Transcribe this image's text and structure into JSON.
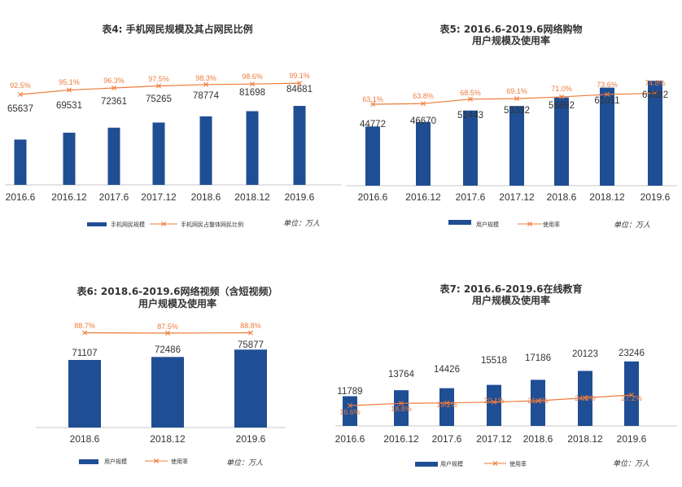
{
  "colors": {
    "bar": "#1f4e94",
    "line": "#ee7b3b",
    "axis": "#c8c8c8"
  },
  "chart_data": [
    {
      "type": "bar",
      "title": "表4: 手机网民规模及其占网民比例",
      "categories": [
        "2016.6",
        "2016.12",
        "2017.6",
        "2017.12",
        "2018.6",
        "2018.12",
        "2019.6"
      ],
      "series": [
        {
          "name": "手机网民规模",
          "type": "bar",
          "values": [
            65637,
            69531,
            72361,
            75265,
            78774,
            81698,
            84681
          ],
          "labels": [
            "65637",
            "69531",
            "72361",
            "75265",
            "78774",
            "81698",
            "84681"
          ]
        },
        {
          "name": "手机网民占整体网民比例",
          "type": "line",
          "values": [
            92.5,
            95.1,
            96.3,
            97.5,
            98.3,
            98.6,
            99.1
          ],
          "labels": [
            "92.5%",
            "95.1%",
            "96.3%",
            "97.5%",
            "98.3%",
            "98.6%",
            "99.1%"
          ]
        }
      ],
      "unit": "单位：万人"
    },
    {
      "type": "bar",
      "title": "表5: 2016.6-2019.6网络购物",
      "subtitle": "用户规模及使用率",
      "categories": [
        "2016.6",
        "2016.12",
        "2017.6",
        "2017.12",
        "2018.6",
        "2018.12",
        "2019.6"
      ],
      "series": [
        {
          "name": "用户规模",
          "type": "bar",
          "values": [
            44772,
            46670,
            51443,
            53332,
            56892,
            61011,
            63882
          ],
          "labels": [
            "44772",
            "46670",
            "51443",
            "53332",
            "56892",
            "61011",
            "63882"
          ]
        },
        {
          "name": "使用率",
          "type": "line",
          "values": [
            63.1,
            63.8,
            68.5,
            69.1,
            71.0,
            73.6,
            74.8
          ],
          "labels": [
            "63.1%",
            "63.8%",
            "68.5%",
            "69.1%",
            "71.0%",
            "73.6%",
            "74.8%"
          ]
        }
      ],
      "unit": "单位：万人"
    },
    {
      "type": "bar",
      "title": "表6: 2018.6-2019.6网络视频（含短视频）",
      "subtitle": "用户规模及使用率",
      "categories": [
        "2018.6",
        "2018.12",
        "2019.6"
      ],
      "series": [
        {
          "name": "用户规模",
          "type": "bar",
          "values": [
            71107,
            72486,
            75877
          ],
          "labels": [
            "71107",
            "72486",
            "75877"
          ]
        },
        {
          "name": "使用率",
          "type": "line",
          "values": [
            88.7,
            87.5,
            88.8
          ],
          "labels": [
            "88.7%",
            "87.5%",
            "88.8%"
          ]
        }
      ],
      "unit": "单位：万人"
    },
    {
      "type": "bar",
      "title": "表7: 2016.6-2019.6在线教育",
      "subtitle": "用户规模及使用率",
      "categories": [
        "2016.6",
        "2016.12",
        "2017.6",
        "2017.12",
        "2018.6",
        "2018.12",
        "2019.6"
      ],
      "series": [
        {
          "name": "用户规模",
          "type": "bar",
          "values": [
            11789,
            13764,
            14426,
            15518,
            17186,
            20123,
            23246
          ],
          "labels": [
            "11789",
            "13764",
            "14426",
            "15518",
            "17186",
            "20123",
            "23246"
          ]
        },
        {
          "name": "使用率",
          "type": "line",
          "values": [
            16.6,
            18.8,
            19.2,
            20.1,
            21.4,
            24.3,
            27.2
          ],
          "labels": [
            "16.6%",
            "18.8%",
            "19.2%",
            "20.1%",
            "21.4%",
            "24.3%",
            "27.2%"
          ]
        }
      ],
      "unit": "单位：万人"
    }
  ]
}
